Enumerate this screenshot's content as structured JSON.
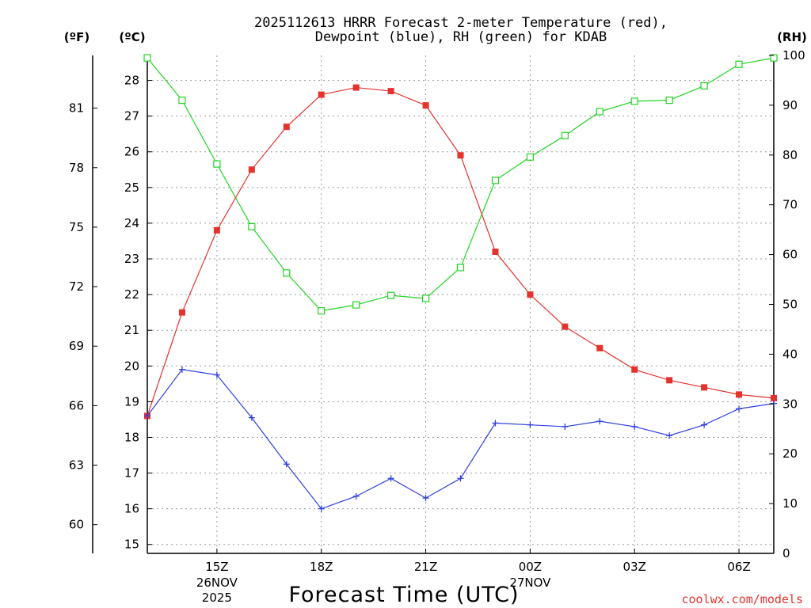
{
  "chart_data": {
    "type": "line",
    "title": [
      "2025112613 HRRR Forecast 2-meter Temperature (red),",
      "Dewpoint (blue), RH (green) for KDAB"
    ],
    "xlabel": "Forecast Time (UTC)",
    "credit": "coolwx.com/models",
    "units": {
      "fahrenheit": "(ºF)",
      "celsius": "(ºC)",
      "rh": "(RH)"
    },
    "x": [
      13,
      14,
      15,
      16,
      17,
      18,
      19,
      20,
      21,
      22,
      23,
      24,
      25,
      26,
      27,
      28,
      29,
      30,
      31
    ],
    "xlim": [
      13,
      31
    ],
    "x_ticks": [
      {
        "x": 15,
        "label": "15Z",
        "sub": [
          "26NOV",
          "2025"
        ]
      },
      {
        "x": 18,
        "label": "18Z",
        "sub": []
      },
      {
        "x": 21,
        "label": "21Z",
        "sub": []
      },
      {
        "x": 24,
        "label": "00Z",
        "sub": [
          "27NOV"
        ]
      },
      {
        "x": 27,
        "label": "03Z",
        "sub": []
      },
      {
        "x": 30,
        "label": "06Z",
        "sub": []
      }
    ],
    "celsius_axis": {
      "ylim": [
        14.75,
        28.7
      ],
      "ticks": [
        15,
        16,
        17,
        18,
        19,
        20,
        21,
        22,
        23,
        24,
        25,
        26,
        27,
        28
      ]
    },
    "fahrenheit_axis": {
      "ticks": [
        60,
        63,
        66,
        69,
        72,
        75,
        78,
        81
      ]
    },
    "rh_axis": {
      "ylim": [
        0,
        100
      ],
      "ticks": [
        0,
        10,
        20,
        30,
        40,
        50,
        60,
        70,
        80,
        90,
        100
      ]
    },
    "series": [
      {
        "name": "Temperature",
        "units": "°C",
        "color": "#e5322d",
        "marker": "filled-square",
        "values": [
          18.6,
          21.5,
          23.8,
          25.5,
          26.7,
          27.6,
          27.8,
          27.7,
          27.3,
          25.9,
          23.2,
          22.0,
          21.1,
          20.5,
          19.9,
          19.6,
          19.4,
          19.2,
          19.1
        ]
      },
      {
        "name": "Dewpoint",
        "units": "°C",
        "color": "#2f3fe0",
        "marker": "plus",
        "values": [
          18.6,
          19.9,
          19.75,
          18.55,
          17.25,
          16.0,
          16.35,
          16.85,
          16.3,
          16.85,
          18.4,
          18.35,
          18.3,
          18.45,
          18.3,
          18.05,
          18.35,
          18.8,
          18.95
        ]
      },
      {
        "name": "RH",
        "units": "%",
        "color": "#22d422",
        "marker": "open-square",
        "values": [
          99.5,
          91.0,
          78.2,
          65.6,
          56.3,
          48.7,
          49.9,
          51.8,
          51.2,
          57.4,
          74.9,
          79.6,
          83.9,
          88.7,
          90.8,
          91.0,
          93.9,
          98.2,
          99.5
        ]
      }
    ]
  }
}
